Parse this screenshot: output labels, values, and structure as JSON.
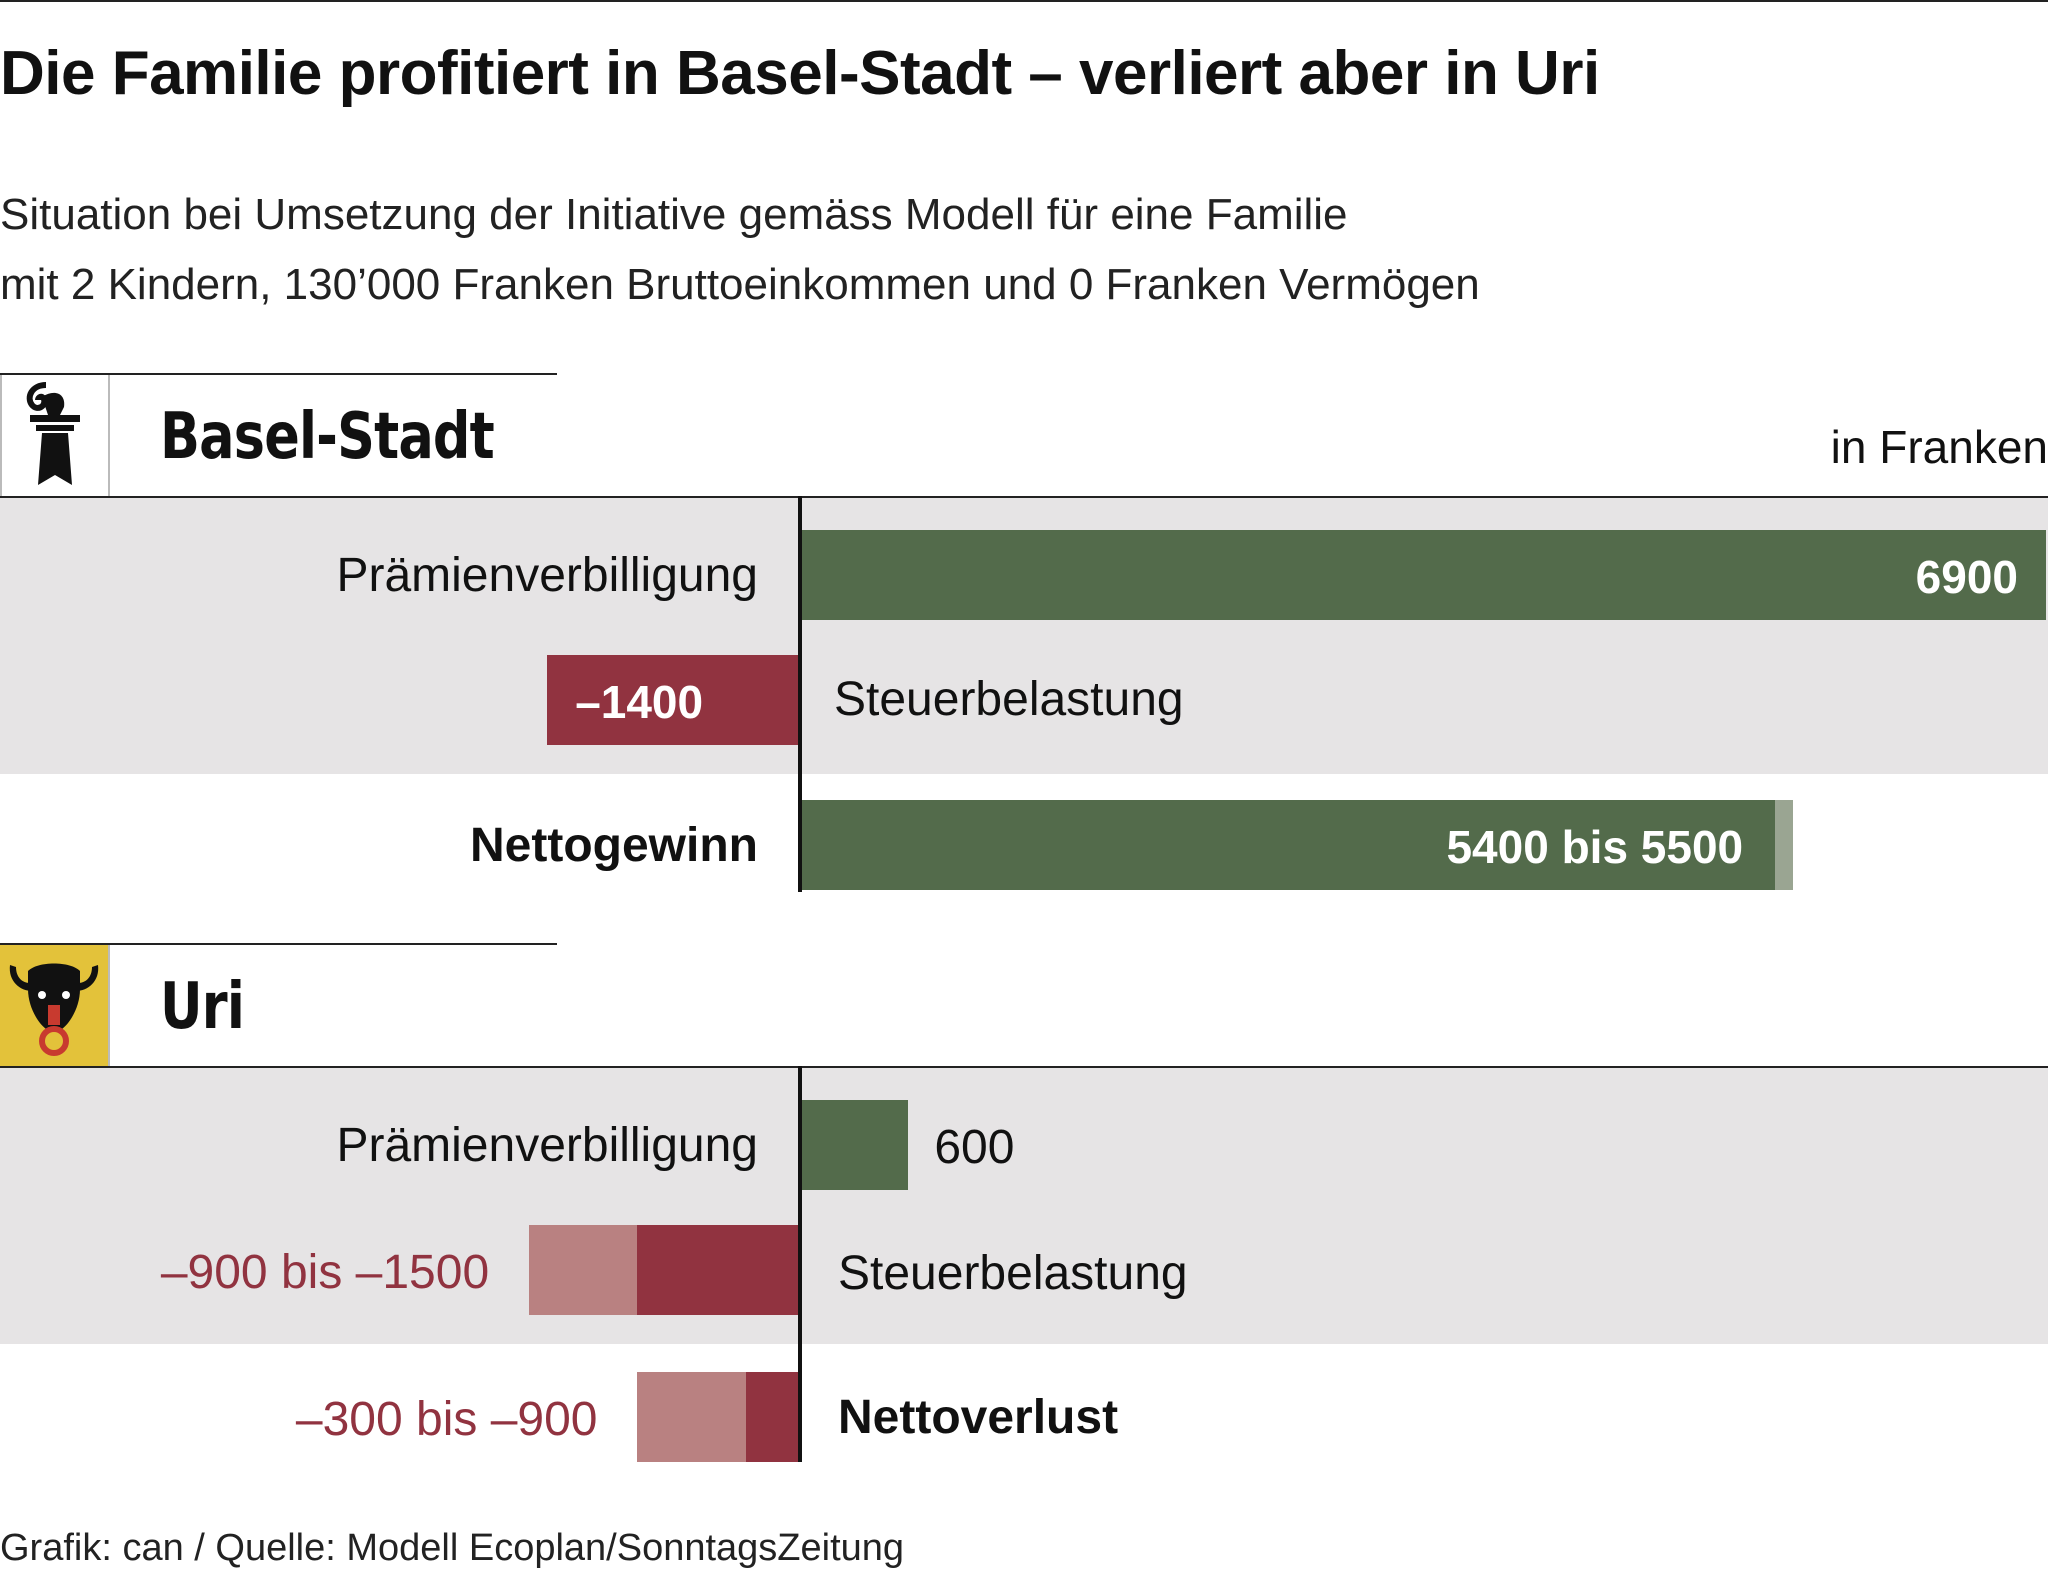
{
  "title": "Die Familie profitiert in Basel-Stadt – verliert aber in Uri",
  "subtitle": {
    "line1": "Situation bei Umsetzung der Initiative gemäss Modell für eine Familie",
    "line2": "mit 2 Kindern, 130’000 Franken Bruttoeinkommen und 0 Franken Vermögen"
  },
  "unit_label": "in Franken",
  "footer": "Grafik: can / Quelle: Modell Ecoplan/SonntagsZeitung",
  "colors": {
    "gain": "#536b4b",
    "gain_range": "#9aa592",
    "loss": "#913340",
    "loss_range": "#b98181",
    "loss_text": "#913340",
    "background_band": "#e6e4e5",
    "uri_crest": "#e3c23a"
  },
  "icons": {
    "basel": "baselstab-crest-icon",
    "uri": "bull-head-crest-icon"
  },
  "chart_data": [
    {
      "type": "bar",
      "orientation": "horizontal",
      "region": "Basel-Stadt",
      "unit": "in Franken",
      "rows": [
        {
          "label": "Prämienverbilligung",
          "value": 6900,
          "value_label": "6900"
        },
        {
          "label": "Steuerbelastung",
          "value": -1400,
          "value_label": "–1400"
        },
        {
          "label": "Nettogewinn",
          "range": [
            5400,
            5500
          ],
          "value_label": "5400 bis 5500"
        }
      ]
    },
    {
      "type": "bar",
      "orientation": "horizontal",
      "region": "Uri",
      "unit": "in Franken",
      "rows": [
        {
          "label": "Prämienverbilligung",
          "value": 600,
          "value_label": "600"
        },
        {
          "label": "Steuerbelastung",
          "range": [
            -900,
            -1500
          ],
          "value_label": "–900 bis –1500"
        },
        {
          "label": "Nettoverlust",
          "range": [
            -300,
            -900
          ],
          "value_label": "–300 bis –900"
        }
      ]
    }
  ]
}
